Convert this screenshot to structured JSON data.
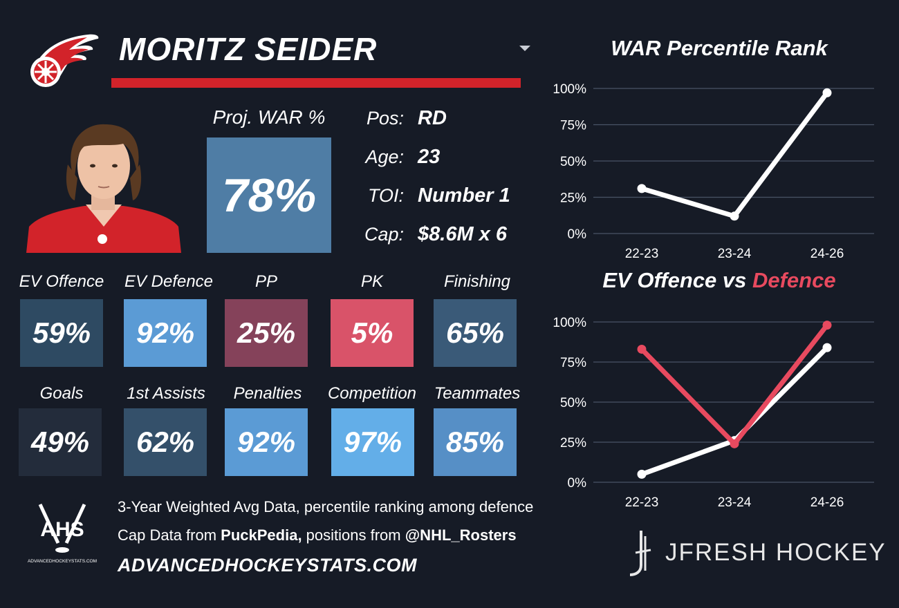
{
  "player": {
    "name": "MORITZ SEIDER",
    "proj_war_label": "Proj. WAR %",
    "proj_war_value": "78%"
  },
  "info": [
    {
      "label": "Pos:",
      "value": "RD"
    },
    {
      "label": "Age:",
      "value": "23"
    },
    {
      "label": "TOI:",
      "value": "Number 1"
    },
    {
      "label": "Cap:",
      "value": "$8.6M x 6"
    }
  ],
  "metrics": [
    {
      "label": "EV Offence",
      "value": "59%",
      "color": "#2e4a62"
    },
    {
      "label": "EV Defence",
      "value": "92%",
      "color": "#5b9bd5"
    },
    {
      "label": "PP",
      "value": "25%",
      "color": "#85425a"
    },
    {
      "label": "PK",
      "value": "5%",
      "color": "#d95369"
    },
    {
      "label": "Finishing",
      "value": "65%",
      "color": "#3a5a78"
    },
    {
      "label": "Goals",
      "value": "49%",
      "color": "#232c3b"
    },
    {
      "label": "1st Assists",
      "value": "62%",
      "color": "#34506a"
    },
    {
      "label": "Penalties",
      "value": "92%",
      "color": "#5b9bd5"
    },
    {
      "label": "Competition",
      "value": "97%",
      "color": "#63aee8"
    },
    {
      "label": "Teammates",
      "value": "85%",
      "color": "#568fc6"
    }
  ],
  "footer": {
    "line1": "3-Year Weighted Avg Data, percentile ranking among defence",
    "line2_prefix": "Cap Data from ",
    "line2_bold1": "PuckPedia,",
    "line2_mid": " positions from ",
    "line2_bold2": "@NHL_Rosters",
    "url": "ADVANCEDHOCKEYSTATS.COM",
    "ahs_logo_text": "AHS",
    "ahs_logo_subtext": "ADVANCEDHOCKEYSTATS.COM",
    "brand": "JFRESH HOCKEY"
  },
  "icons": {
    "team_logo": "red-wings-logo",
    "dropdown": "chevron-down-icon",
    "headshot": "player-headshot"
  },
  "colors": {
    "background": "#161b26",
    "accent_red": "#d2232a",
    "defence_line": "#e84a5f",
    "offence_line": "#ffffff",
    "grid": "#4a5466"
  },
  "chart_data": [
    {
      "type": "line",
      "title": "WAR Percentile Rank",
      "categories": [
        "22-23",
        "23-24",
        "24-26"
      ],
      "series": [
        {
          "values": [
            31,
            12,
            97
          ],
          "color": "#ffffff"
        }
      ],
      "ylim": [
        0,
        100
      ],
      "yticks": [
        "0%",
        "25%",
        "50%",
        "75%",
        "100%"
      ],
      "grid": true
    },
    {
      "type": "line",
      "title_part1": "EV Offence vs ",
      "title_part2": "Defence",
      "categories": [
        "22-23",
        "23-24",
        "24-26"
      ],
      "series": [
        {
          "values": [
            5,
            26,
            84
          ],
          "color": "#ffffff"
        },
        {
          "values": [
            83,
            24,
            98
          ],
          "color": "#e84a5f"
        }
      ],
      "ylim": [
        0,
        100
      ],
      "yticks": [
        "0%",
        "25%",
        "50%",
        "75%",
        "100%"
      ],
      "grid": true
    }
  ]
}
